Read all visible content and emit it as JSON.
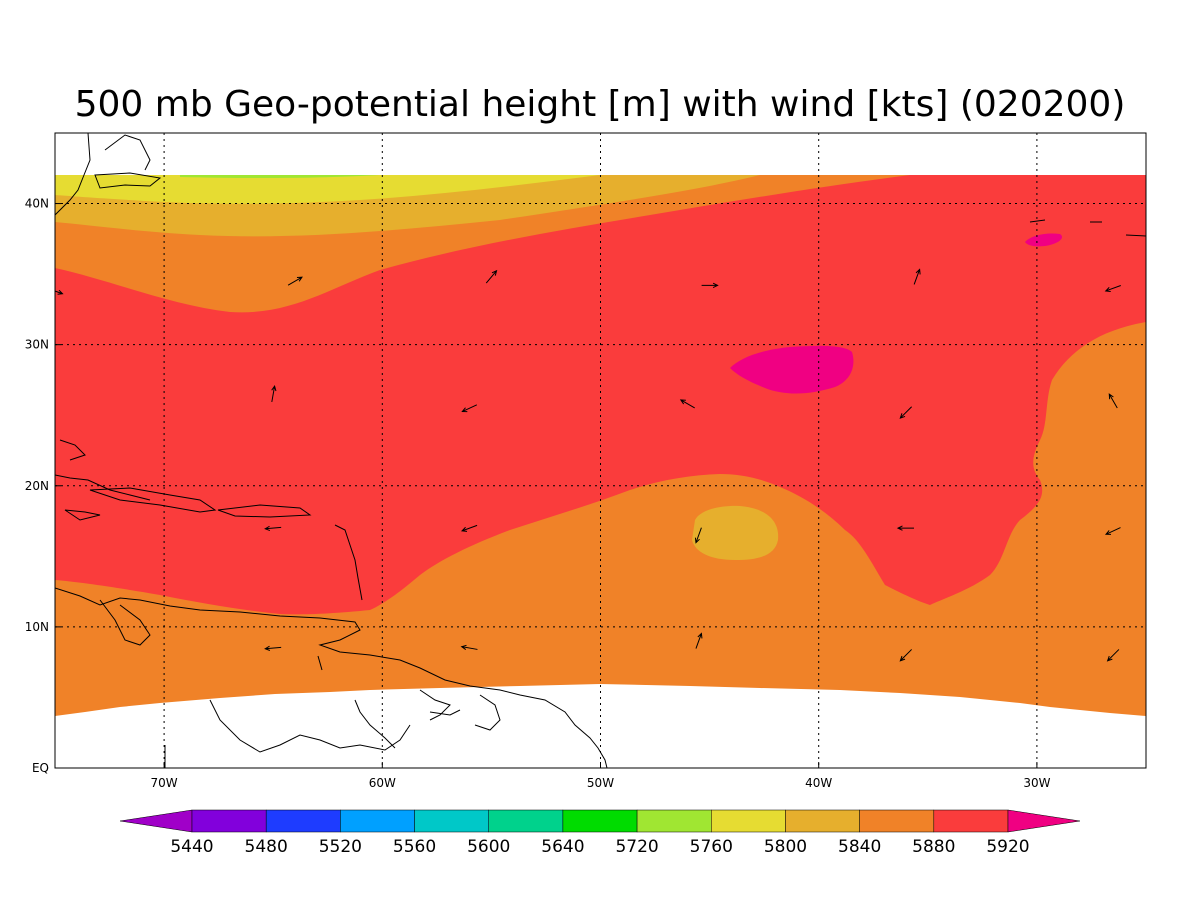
{
  "title": "500 mb Geo-potential height [m] with wind [kts] (020200)",
  "map": {
    "lon_range": [
      -75,
      -25
    ],
    "lat_range": [
      0,
      45
    ],
    "data_lat_max": 42,
    "x_ticks": [
      {
        "lon": -70,
        "label": "70W"
      },
      {
        "lon": -60,
        "label": "60W"
      },
      {
        "lon": -50,
        "label": "50W"
      },
      {
        "lon": -40,
        "label": "40W"
      },
      {
        "lon": -30,
        "label": "30W"
      }
    ],
    "y_ticks": [
      {
        "lat": 40,
        "label": "40N"
      },
      {
        "lat": 30,
        "label": "30N"
      },
      {
        "lat": 20,
        "label": "20N"
      },
      {
        "lat": 10,
        "label": "10N"
      },
      {
        "lat": 0,
        "label": "EQ"
      }
    ],
    "grid": true,
    "colors": {
      "c5760": "#a0e632",
      "c5800": "#e6dc32",
      "c5840": "#e6af2d",
      "c5880": "#f08228",
      "c5920": "#fa3c3c",
      "c5960": "#f00082"
    }
  },
  "colorbar": {
    "colors": [
      "#a000c8",
      "#8200dc",
      "#1e3cff",
      "#00a0ff",
      "#00c8c8",
      "#00d28c",
      "#00dc00",
      "#a0e632",
      "#e6dc32",
      "#e6af2d",
      "#f08228",
      "#fa3c3c",
      "#f00082"
    ],
    "labels": [
      "5440",
      "5480",
      "5520",
      "5560",
      "5600",
      "5640",
      "5720",
      "5760",
      "5800",
      "5840",
      "5880",
      "5920"
    ]
  },
  "wind_vectors": [
    {
      "lon": -64,
      "lat": 34.5,
      "dir": 60
    },
    {
      "lon": -55,
      "lat": 34.8,
      "dir": 40
    },
    {
      "lon": -45,
      "lat": 34.2,
      "dir": 90
    },
    {
      "lon": -35.5,
      "lat": 34.8,
      "dir": 20
    },
    {
      "lon": -26.5,
      "lat": 34,
      "dir": 250
    },
    {
      "lon": -75,
      "lat": 33.8,
      "dir": 110
    },
    {
      "lon": -65,
      "lat": 26.5,
      "dir": 10
    },
    {
      "lon": -56,
      "lat": 25.5,
      "dir": 245
    },
    {
      "lon": -46,
      "lat": 25.8,
      "dir": 300
    },
    {
      "lon": -36,
      "lat": 25.2,
      "dir": 225
    },
    {
      "lon": -26.5,
      "lat": 26,
      "dir": 330
    },
    {
      "lon": -65,
      "lat": 17,
      "dir": 265
    },
    {
      "lon": -56,
      "lat": 17,
      "dir": 250
    },
    {
      "lon": -45.5,
      "lat": 16.5,
      "dir": 200
    },
    {
      "lon": -36,
      "lat": 17,
      "dir": 270
    },
    {
      "lon": -26.5,
      "lat": 16.8,
      "dir": 245
    },
    {
      "lon": -65,
      "lat": 8.5,
      "dir": 265
    },
    {
      "lon": -56,
      "lat": 8.5,
      "dir": 280
    },
    {
      "lon": -45.5,
      "lat": 9,
      "dir": 20
    },
    {
      "lon": -36,
      "lat": 8,
      "dir": 225
    },
    {
      "lon": -26.5,
      "lat": 8,
      "dir": 225
    }
  ]
}
